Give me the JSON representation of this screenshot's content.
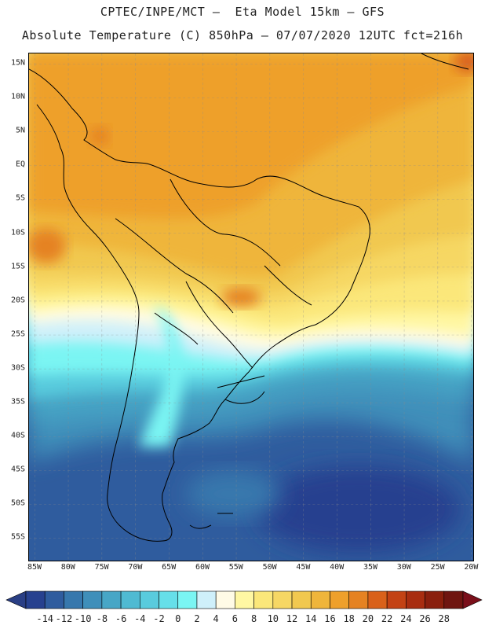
{
  "header": {
    "title_line1": "CPTEC/INPE/MCT –  Eta Model 15km – GFS",
    "title_line2": "Absolute Temperature (C) 850hPa – 07/07/2020 12UTC fct=216h"
  },
  "map": {
    "lat_labels": [
      "15N",
      "10N",
      "5N",
      "EQ",
      "5S",
      "10S",
      "15S",
      "20S",
      "25S",
      "30S",
      "35S",
      "40S",
      "45S",
      "50S",
      "55S"
    ],
    "lon_labels": [
      "85W",
      "80W",
      "75W",
      "70W",
      "65W",
      "60W",
      "55W",
      "50W",
      "45W",
      "40W",
      "35W",
      "30W",
      "25W",
      "20W"
    ]
  },
  "colorbar": {
    "labels": [
      "-14",
      "-12",
      "-10",
      "-8",
      "-6",
      "-4",
      "-2",
      "0",
      "2",
      "4",
      "6",
      "8",
      "10",
      "12",
      "14",
      "16",
      "18",
      "20",
      "22",
      "24",
      "26",
      "28"
    ],
    "colors": [
      "#27418f",
      "#2f5c9e",
      "#3778ad",
      "#3f8fba",
      "#47a6c6",
      "#4fbad2",
      "#59cbdd",
      "#66dfe9",
      "#7af5f3",
      "#cff0fa",
      "#fffbe6",
      "#fff7a3",
      "#fbe77a",
      "#f6d764",
      "#f1c84f",
      "#efb53b",
      "#eea02b",
      "#e58222",
      "#d9611a",
      "#c34214",
      "#a82d10",
      "#8a1f0d",
      "#6f1510"
    ],
    "under_color": "#2a3f85",
    "over_color": "#7a0f1a"
  }
}
